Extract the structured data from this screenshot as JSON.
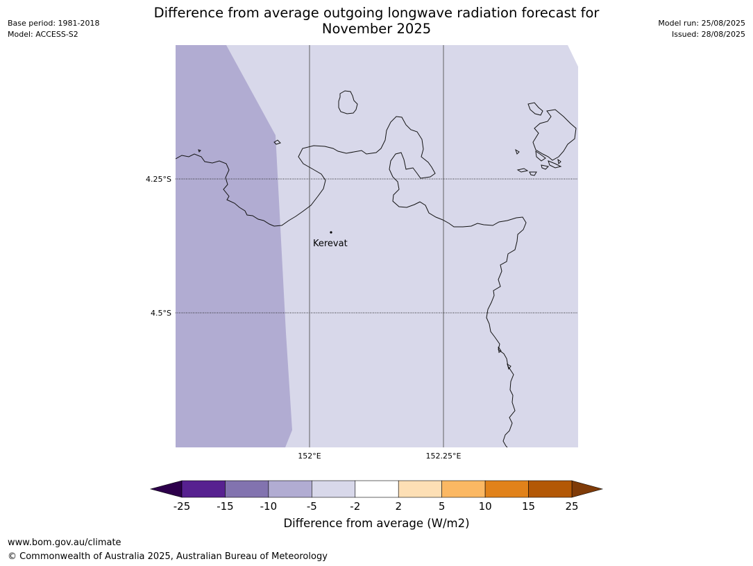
{
  "header": {
    "title": "Difference from average outgoing longwave radiation forecast for\nNovember 2025",
    "base_period": "Base period: 1981-2018",
    "model": "Model: ACCESS-S2",
    "model_run": "Model run: 25/08/2025",
    "issued": "Issued: 28/08/2025"
  },
  "map": {
    "latitude_labels": [
      "4.25°S",
      "4.5°S"
    ],
    "longitude_labels": [
      "152°E",
      "152.25°E"
    ],
    "place": {
      "name": "Kerevat"
    },
    "shading": [
      {
        "category": "-10 to -5",
        "color": "#b1acd2"
      },
      {
        "category": "-5 to -2",
        "color": "#d8d8ea"
      }
    ]
  },
  "colorbar": {
    "label": "Difference from average (W/m2)",
    "ticks": [
      "-25",
      "-15",
      "-10",
      "-5",
      "-2",
      "2",
      "5",
      "10",
      "15",
      "25"
    ],
    "colors": [
      "#572190",
      "#8273af",
      "#b1acd2",
      "#d8d8ea",
      "#ffffff",
      "#fddfb5",
      "#fbb863",
      "#e1821a",
      "#b35806"
    ],
    "extend_low_color": "#2d004b",
    "extend_high_color": "#7f3b08"
  },
  "footer": {
    "url": "www.bom.gov.au/climate",
    "copyright": "© Commonwealth of Australia 2025, Australian Bureau of Meteorology"
  }
}
